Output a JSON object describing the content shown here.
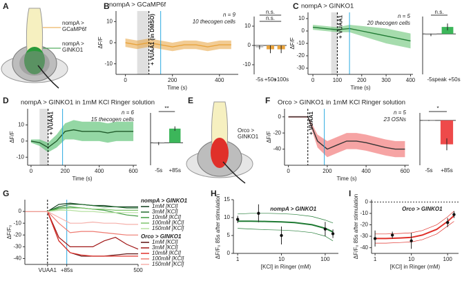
{
  "diagrams": [
    {
      "letter": "A",
      "labels": [
        {
          "lines": [
            "nompA >",
            "GCaMP6f"
          ],
          "color": "#e8a33d"
        },
        {
          "lines": [
            "nompA >",
            "GINKO1"
          ],
          "color": "#2a9a3a"
        }
      ]
    },
    {
      "letter": "E",
      "labels": [
        {
          "lines": [
            "Orco >",
            "GINKO1"
          ],
          "color": "#e0302a"
        }
      ]
    }
  ],
  "chart_data": [
    {
      "type": "line",
      "panel": "B",
      "title": "nompA > GCaMP6f",
      "title_color": "#e8a33d",
      "annotations": [
        "n = 9",
        "10 thecogen cells"
      ],
      "xlabel": "Time (s)",
      "ylabel": "ΔF/F",
      "xlim": [
        -40,
        480
      ],
      "xticks": [
        0,
        200,
        400
      ],
      "ylim": [
        -15,
        15
      ],
      "yticks": [
        10,
        0,
        -10
      ],
      "shaded_x": [
        50,
        100
      ],
      "vlines": [
        {
          "x": 100,
          "color": "#000000",
          "style": "dashed",
          "label": "+ VUAA1 (in DMSO)"
        },
        {
          "x": 150,
          "color": "#29a8e0"
        }
      ],
      "x": [
        0,
        50,
        100,
        150,
        200,
        250,
        300,
        350,
        400,
        450
      ],
      "series": [
        {
          "color": "#e8a33d",
          "values": [
            0,
            -1,
            0,
            -1,
            -2,
            -1,
            -1,
            -2,
            -1,
            -1
          ],
          "lower": [
            -2,
            -3,
            -2,
            -3,
            -4,
            -3,
            -3,
            -4,
            -3,
            -3
          ],
          "upper": [
            2,
            1,
            2,
            1,
            0,
            1,
            1,
            0,
            1,
            1
          ]
        }
      ]
    },
    {
      "type": "bar",
      "categories": [
        "-5s",
        "+50s",
        "+100s"
      ],
      "category_colors": [
        "#000000",
        "#29a8e0",
        "#29a8e0"
      ],
      "values": [
        -1,
        -2,
        -2
      ],
      "errors": [
        1,
        2,
        2
      ],
      "colors": [
        "#bbbbbb",
        "#e8a33d",
        "#e8a33d"
      ],
      "ylim": [
        -15,
        15
      ],
      "yticks": [
        10,
        0,
        -10
      ],
      "annotations": [
        "n.s.",
        "n.s."
      ]
    },
    {
      "type": "line",
      "panel": "C",
      "title": "nompA > GINKO1",
      "title_color": "#2a9a3a",
      "annotations": [
        "n = 5",
        "20 thecogen cells"
      ],
      "xlabel": "Time (s)",
      "ylabel": "ΔF/F",
      "xlim": [
        -20,
        410
      ],
      "xticks": [
        0,
        100,
        200,
        300,
        400
      ],
      "ylim": [
        -35,
        15
      ],
      "yticks": [
        10,
        0,
        -10,
        -20,
        -30
      ],
      "shaded_x": [
        75,
        100
      ],
      "vlines": [
        {
          "x": 100,
          "color": "#000000",
          "style": "dashed",
          "label": "+ VUAA1"
        },
        {
          "x": 150,
          "color": "#29a8e0"
        }
      ],
      "x": [
        0,
        50,
        100,
        150,
        200,
        250,
        300,
        350,
        400
      ],
      "series": [
        {
          "color": "#1f7a33",
          "band_color": "#5cbf6a",
          "values": [
            3,
            2,
            1,
            2,
            0,
            -2,
            -4,
            -6,
            -8
          ],
          "lower": [
            1,
            0,
            -1,
            -1,
            -4,
            -7,
            -10,
            -12,
            -14
          ],
          "upper": [
            5,
            4,
            3,
            5,
            4,
            3,
            2,
            0,
            -2
          ]
        }
      ]
    },
    {
      "type": "bar",
      "categories": [
        "-5s",
        "peak +50s"
      ],
      "category_colors": [
        "#000000",
        "#29a8e0"
      ],
      "values": [
        -1,
        6
      ],
      "errors": [
        1,
        3
      ],
      "colors": [
        "#bbbbbb",
        "#3cb65a"
      ],
      "ylim": [
        -35,
        15
      ],
      "annotations": [
        "n.s."
      ]
    },
    {
      "type": "line",
      "panel": "D",
      "title": "nompA > GINKO1 in 1mM KCl Ringer solution",
      "title_color": "#2a9a3a",
      "annotations": [
        "n = 6",
        "15 thecogen cells"
      ],
      "xlabel": "Time (s)",
      "ylabel": "ΔF/F",
      "xlim": [
        -20,
        620
      ],
      "xticks": [
        0,
        200,
        400,
        600
      ],
      "ylim": [
        -15,
        20
      ],
      "yticks": [
        10,
        0,
        -10
      ],
      "shaded_x": [
        50,
        100
      ],
      "vlines": [
        {
          "x": 100,
          "color": "#000000",
          "style": "dashed",
          "label": "+ VUAA1"
        },
        {
          "x": 185,
          "color": "#29a8e0"
        }
      ],
      "x": [
        0,
        50,
        100,
        150,
        200,
        250,
        300,
        350,
        400,
        450,
        500,
        550,
        600
      ],
      "series": [
        {
          "color": "#1f5a2a",
          "band_color": "#3cb65a",
          "values": [
            0,
            -1,
            -4,
            0,
            6,
            7,
            6,
            6,
            6,
            5,
            6,
            6,
            6
          ],
          "lower": [
            -1,
            -3,
            -7,
            -4,
            1,
            1,
            0,
            0,
            0,
            -1,
            0,
            0,
            0
          ],
          "upper": [
            1,
            1,
            -1,
            4,
            11,
            13,
            12,
            12,
            12,
            11,
            12,
            12,
            12
          ]
        }
      ]
    },
    {
      "type": "bar",
      "categories": [
        "-5s",
        "+85s"
      ],
      "category_colors": [
        "#000000",
        "#29a8e0"
      ],
      "values": [
        -0.5,
        9.5
      ],
      "errors": [
        1,
        1.5
      ],
      "colors": [
        "#bbbbbb",
        "#3cb65a"
      ],
      "ylim": [
        -15,
        20
      ],
      "annotations": [
        "**"
      ]
    },
    {
      "type": "line",
      "panel": "F",
      "title": "Orco > GINKO1 in 1mM KCl Ringer solution",
      "title_color": "#e0302a",
      "annotations": [
        "n = 5",
        "23 OSNs"
      ],
      "xlabel": "Time (s)",
      "ylabel": "ΔF/F",
      "xlim": [
        -20,
        620
      ],
      "xticks": [
        0,
        200,
        400,
        600
      ],
      "ylim": [
        -60,
        10
      ],
      "yticks": [
        0,
        -20,
        -40
      ],
      "vlines": [
        {
          "x": 100,
          "color": "#000000",
          "style": "dashed",
          "label": "+ VUAA1"
        },
        {
          "x": 185,
          "color": "#29a8e0"
        }
      ],
      "x": [
        0,
        50,
        100,
        150,
        200,
        250,
        300,
        350,
        400,
        450,
        500,
        550,
        600
      ],
      "series": [
        {
          "color": "#333333",
          "band_color": "#ee5a5a",
          "values": [
            0,
            0,
            0,
            -30,
            -40,
            -35,
            -30,
            -30,
            -32,
            -35,
            -38,
            -40,
            -40
          ],
          "lower": [
            -1,
            -1,
            -1,
            -38,
            -50,
            -45,
            -40,
            -40,
            -42,
            -45,
            -48,
            -50,
            -50
          ],
          "upper": [
            1,
            1,
            1,
            -22,
            -30,
            -25,
            -20,
            -20,
            -22,
            -25,
            -28,
            -30,
            -30
          ]
        }
      ]
    },
    {
      "type": "bar",
      "categories": [
        "-5s",
        "+85s"
      ],
      "category_colors": [
        "#000000",
        "#29a8e0"
      ],
      "values": [
        0,
        -32
      ],
      "errors": [
        0.5,
        8
      ],
      "colors": [
        "#bbbbbb",
        "#ee4a4a"
      ],
      "ylim": [
        -60,
        10
      ],
      "annotations": [
        "*"
      ]
    },
    {
      "type": "multiline",
      "panel": "G",
      "ylabel": "ΔF/F₀",
      "xlim": [
        0,
        500
      ],
      "xticks": [
        {
          "value": 100,
          "label": "VUAA1"
        },
        {
          "value": 185,
          "label": "+85s"
        },
        500
      ],
      "ylim": [
        -45,
        10
      ],
      "yticks": [
        0,
        -10,
        -20,
        -30,
        -40
      ],
      "vlines": [
        {
          "x": 100,
          "color": "#000000",
          "style": "dashed"
        },
        {
          "x": 185,
          "color": "#29a8e0"
        }
      ],
      "legend_titles": [
        {
          "text": "nompA > GINKO1",
          "color": "#1f7a33"
        },
        {
          "text": "Orco > GINKO1",
          "color": "#e0302a"
        }
      ],
      "x": [
        0,
        50,
        100,
        150,
        200,
        250,
        300,
        350,
        400,
        450,
        500
      ],
      "series": [
        {
          "name": "1mM [KCl]",
          "color": "#0d3b1a",
          "values": [
            0,
            0,
            0,
            6,
            7,
            6,
            5,
            5,
            4,
            4,
            4
          ]
        },
        {
          "name": "3mM [KCl]",
          "color": "#1f6b2c",
          "values": [
            0,
            0,
            0,
            4,
            6,
            6,
            5,
            4,
            4,
            3,
            3
          ]
        },
        {
          "name": "10mM [KCl]",
          "color": "#3d9a3d",
          "values": [
            0,
            0,
            0,
            3,
            4,
            3,
            2,
            1,
            -1,
            -3,
            -4
          ]
        },
        {
          "name": "100mM [KCl]",
          "color": "#7cc36a",
          "values": [
            0,
            0,
            0,
            2,
            3,
            3,
            2,
            2,
            1,
            1,
            1
          ]
        },
        {
          "name": "150mM [KCl]",
          "color": "#b5e0a0",
          "values": [
            0,
            0,
            0,
            1,
            1,
            0,
            0,
            -1,
            -1,
            -1,
            -1
          ]
        },
        {
          "name": "1mM [KCl]",
          "color": "#5a0f0f",
          "values": [
            0,
            0,
            0,
            -25,
            -35,
            -38,
            -38,
            -38,
            -37,
            -36,
            -36
          ]
        },
        {
          "name": "3mM [KCl]",
          "color": "#a01515",
          "values": [
            0,
            0,
            0,
            -22,
            -30,
            -30,
            -30,
            -25,
            -22,
            -28,
            -32
          ]
        },
        {
          "name": "10mM [KCl]",
          "color": "#e0302a",
          "values": [
            0,
            0,
            0,
            -25,
            -35,
            -37,
            -38,
            -38,
            -38,
            -38,
            -38
          ]
        },
        {
          "name": "100mM [KCl]",
          "color": "#ee7a70",
          "values": [
            0,
            0,
            0,
            -10,
            -18,
            -17,
            -17,
            -18,
            -19,
            -20,
            -20
          ]
        },
        {
          "name": "150mM [KCl]",
          "color": "#f5b0aa",
          "values": [
            0,
            0,
            0,
            -5,
            -10,
            -10,
            -9,
            -10,
            -10,
            -11,
            -11
          ]
        }
      ]
    },
    {
      "type": "scatter",
      "panel": "H",
      "title": "nompA > GINKO1",
      "title_color": "#1f7a33",
      "log_x": true,
      "xlabel": "[KCl] in Ringer (mM)",
      "ylabel": "ΔF/F₀ 85s after stimulation",
      "xlim": [
        0.8,
        200
      ],
      "xticks": [
        1,
        10,
        100
      ],
      "ylim": [
        0,
        15
      ],
      "yticks": [
        0,
        5,
        10,
        15
      ],
      "x": [
        1,
        3,
        10,
        100,
        150
      ],
      "values": [
        9.5,
        11.2,
        5,
        6.8,
        5.5
      ],
      "errors": [
        1,
        2.5,
        2.5,
        2,
        1.2
      ],
      "fit": {
        "color": "#1f7a33",
        "x": [
          1,
          2,
          5,
          10,
          20,
          50,
          100,
          150
        ],
        "values": [
          9,
          9,
          8.9,
          8.8,
          8.6,
          8,
          7,
          6
        ],
        "lower": [
          7,
          6.8,
          6.6,
          6.5,
          6.3,
          5.8,
          4.8,
          3.5
        ],
        "upper": [
          11,
          11.2,
          11.2,
          11.1,
          10.9,
          10.3,
          9.3,
          8.5
        ]
      }
    },
    {
      "type": "scatter",
      "panel": "I",
      "title": "Orco > GINKO1",
      "title_color": "#e0302a",
      "log_x": true,
      "zero_line": true,
      "xlabel": "[KCl] in Ringer (mM)",
      "ylabel": "ΔF/F₀ 85s after stimulation",
      "xlim": [
        0.8,
        200
      ],
      "xticks": [
        1,
        10,
        100
      ],
      "ylim": [
        -45,
        2
      ],
      "yticks": [
        0,
        -10,
        -20,
        -30,
        -40
      ],
      "x": [
        1,
        3,
        10,
        100,
        150
      ],
      "values": [
        -32,
        -29,
        -34,
        -18,
        -11
      ],
      "errors": [
        7,
        3,
        7,
        4,
        3
      ],
      "fit": {
        "color": "#e0302a",
        "x": [
          1,
          2,
          5,
          10,
          20,
          50,
          100,
          150
        ],
        "values": [
          -32,
          -32,
          -31.5,
          -31,
          -29,
          -24,
          -17,
          -12
        ],
        "lower": [
          -36,
          -36,
          -35.5,
          -35,
          -33,
          -28,
          -21,
          -17
        ],
        "upper": [
          -28,
          -28,
          -27.5,
          -27,
          -25,
          -20,
          -13,
          -8
        ]
      }
    }
  ]
}
